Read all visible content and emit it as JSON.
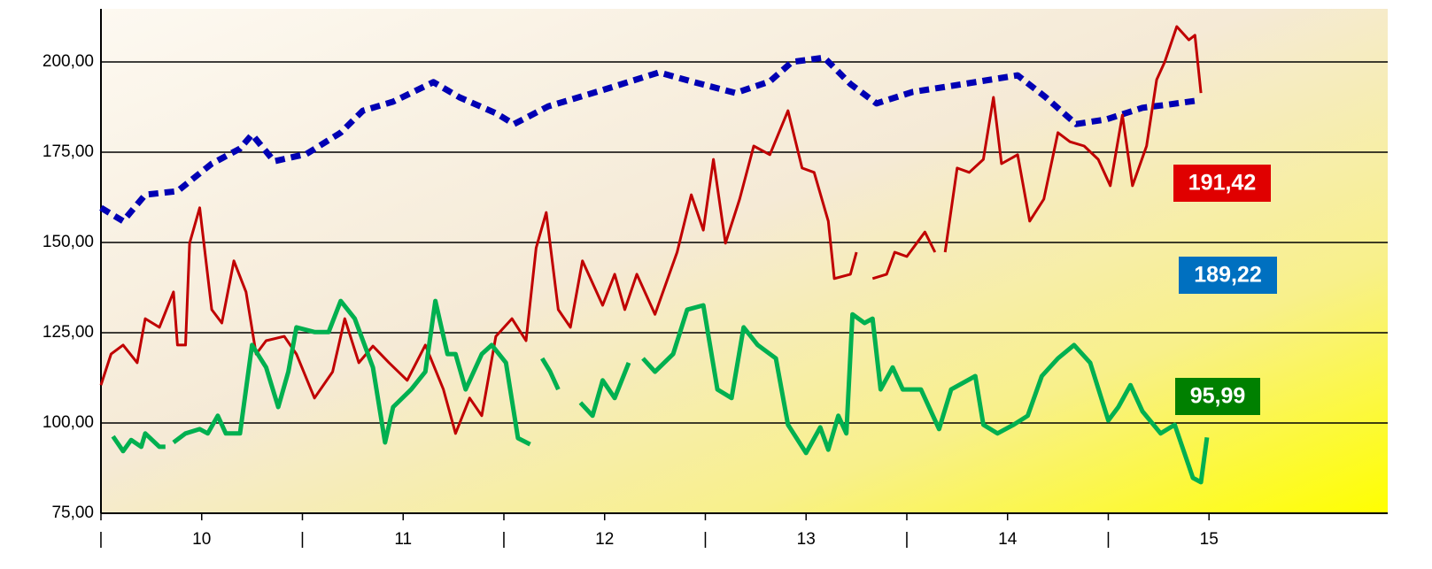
{
  "chart_data": {
    "type": "line",
    "xlim": [
      9.5,
      15.887
    ],
    "ylim": [
      75,
      214.7
    ],
    "xticks": [
      {
        "value": 9.5,
        "label": "|"
      },
      10,
      {
        "value": 10.5,
        "label": "|"
      },
      11,
      {
        "value": 11.5,
        "label": "|"
      },
      12,
      {
        "value": 12.5,
        "label": "|"
      },
      13,
      {
        "value": 13.5,
        "label": "|"
      },
      14,
      {
        "value": 14.5,
        "label": "|"
      },
      15
    ],
    "yticks": [
      {
        "value": 75,
        "label": "75,00"
      },
      {
        "value": 100,
        "label": "100,00"
      },
      {
        "value": 125,
        "label": "125,00"
      },
      {
        "value": 150,
        "label": "150,00"
      },
      {
        "value": 175,
        "label": "175,00"
      },
      {
        "value": 200,
        "label": "200,00"
      }
    ],
    "grid": true,
    "series": [
      {
        "color": "#0000b4",
        "dashed": true,
        "value_label": "189,22",
        "label_color": "#0070c0",
        "x": [
          9.5,
          9.61,
          9.72,
          9.88,
          10.05,
          10.19,
          10.25,
          10.36,
          10.52,
          10.69,
          10.8,
          10.95,
          11.15,
          11.28,
          11.46,
          11.55,
          11.72,
          11.99,
          12.27,
          12.43,
          12.65,
          12.82,
          12.93,
          13.09,
          13.22,
          13.35,
          13.53,
          13.75,
          14.05,
          14.19,
          14.34,
          14.49,
          14.67,
          14.8,
          14.93
        ],
        "values": [
          159.6,
          155.9,
          163.2,
          164.2,
          171.8,
          176.0,
          179.9,
          172.5,
          174.5,
          180.4,
          186.5,
          189.0,
          194.4,
          190.2,
          185.8,
          182.8,
          187.7,
          192.2,
          197.1,
          194.6,
          191.4,
          194.6,
          200.0,
          201.2,
          193.9,
          188.5,
          191.7,
          193.6,
          196.3,
          190.2,
          182.8,
          184.1,
          187.3,
          188.2,
          189.2
        ]
      },
      {
        "color": "#c00000",
        "dashed": false,
        "value_label": "191,42",
        "label_color": "#e00000",
        "x": [
          9.5,
          9.55,
          9.61,
          9.68,
          9.72,
          9.79,
          9.86,
          9.88,
          9.92,
          9.94,
          9.99,
          10.05,
          10.1,
          10.16,
          10.22,
          10.27,
          10.32,
          10.41,
          10.47,
          10.56,
          10.65,
          10.71,
          10.78,
          10.85,
          10.93,
          11.02,
          11.11,
          11.2,
          11.26,
          11.33,
          11.39,
          11.46,
          11.54,
          11.61,
          11.66,
          11.71,
          11.77,
          11.83,
          11.89,
          11.99,
          12.05,
          12.1,
          12.16,
          12.25,
          12.36,
          12.43,
          12.49,
          12.54,
          12.6,
          12.67,
          12.74,
          12.82,
          12.91,
          12.98,
          13.04,
          13.11,
          13.14,
          13.22,
          13.25,
          13.3,
          13.33,
          13.4,
          13.44,
          13.5,
          13.59,
          13.64,
          13.66,
          13.69,
          13.75,
          13.81,
          13.88,
          13.93,
          13.97,
          14.05,
          14.11,
          14.18,
          14.25,
          14.31,
          14.38,
          14.45,
          14.51,
          14.57,
          14.62,
          14.69,
          14.74,
          14.78,
          14.84,
          14.9,
          14.93,
          14.96
        ],
        "values": [
          110.5,
          119.1,
          121.6,
          116.7,
          128.9,
          126.5,
          136.3,
          121.6,
          121.6,
          149.8,
          159.6,
          131.4,
          127.7,
          144.9,
          136.3,
          119.1,
          122.8,
          124.0,
          119.1,
          106.9,
          114.2,
          128.9,
          116.7,
          121.3,
          116.7,
          111.8,
          121.6,
          109.3,
          97.1,
          106.9,
          102.0,
          124.0,
          128.9,
          122.8,
          148.5,
          158.3,
          131.4,
          126.5,
          144.9,
          132.6,
          141.2,
          131.4,
          141.2,
          130.1,
          147.3,
          163.2,
          153.4,
          173.0,
          149.8,
          162.0,
          176.7,
          174.3,
          186.5,
          170.6,
          169.4,
          155.9,
          140.0,
          141.2,
          147.3,
          null,
          140.0,
          141.2,
          147.3,
          146.1,
          152.9,
          147.3,
          null,
          147.3,
          170.6,
          169.4,
          173.0,
          190.2,
          171.8,
          174.3,
          155.9,
          162.0,
          180.4,
          177.9,
          176.7,
          173.0,
          165.7,
          185.3,
          165.7,
          176.7,
          195.1,
          200.0,
          209.8,
          206.1,
          207.4,
          191.4
        ]
      },
      {
        "color": "#00b050",
        "dashed": false,
        "value_label": "95,99",
        "label_color": "#008000",
        "x": [
          9.56,
          9.61,
          9.65,
          9.7,
          9.72,
          9.79,
          9.82,
          9.84,
          9.86,
          9.92,
          9.99,
          10.03,
          10.08,
          10.12,
          10.19,
          10.25,
          10.32,
          10.38,
          10.43,
          10.47,
          10.56,
          10.63,
          10.69,
          10.76,
          10.85,
          10.91,
          10.95,
          11.04,
          11.11,
          11.16,
          11.22,
          11.26,
          11.31,
          11.39,
          11.44,
          11.51,
          11.57,
          11.63,
          11.66,
          11.69,
          11.73,
          11.77,
          11.8,
          11.88,
          11.94,
          11.99,
          12.05,
          12.12,
          12.15,
          12.19,
          12.25,
          12.34,
          12.41,
          12.49,
          12.56,
          12.63,
          12.69,
          12.76,
          12.85,
          12.91,
          13.0,
          13.07,
          13.11,
          13.16,
          13.2,
          13.23,
          13.29,
          13.33,
          13.37,
          13.43,
          13.48,
          13.57,
          13.66,
          13.72,
          13.84,
          13.88,
          13.95,
          14.03,
          14.1,
          14.17,
          14.25,
          14.33,
          14.41,
          14.5,
          14.55,
          14.61,
          14.67,
          14.76,
          14.83,
          14.92,
          14.96,
          14.99
        ],
        "values": [
          96.3,
          92.2,
          95.3,
          93.4,
          97.1,
          93.4,
          93.4,
          null,
          94.6,
          97.1,
          98.3,
          97.1,
          102.0,
          97.1,
          97.1,
          121.6,
          115.4,
          104.4,
          114.2,
          126.5,
          125.2,
          125.2,
          133.8,
          128.9,
          115.4,
          94.6,
          104.4,
          109.3,
          114.2,
          133.8,
          119.1,
          119.1,
          109.3,
          119.1,
          121.6,
          116.7,
          95.8,
          94.1,
          null,
          117.9,
          114.2,
          109.3,
          null,
          105.6,
          102.0,
          111.8,
          106.9,
          116.7,
          null,
          117.9,
          114.2,
          119.1,
          131.4,
          132.6,
          109.3,
          106.9,
          126.5,
          121.6,
          117.9,
          99.5,
          91.7,
          98.8,
          92.6,
          102.0,
          97.1,
          130.1,
          127.7,
          128.9,
          109.3,
          115.4,
          109.3,
          109.3,
          98.3,
          109.3,
          113.0,
          99.5,
          97.1,
          99.5,
          102.0,
          113.0,
          117.9,
          121.6,
          116.7,
          100.7,
          104.4,
          110.5,
          103.2,
          97.1,
          99.5,
          84.8,
          83.6,
          96.0
        ]
      }
    ]
  }
}
